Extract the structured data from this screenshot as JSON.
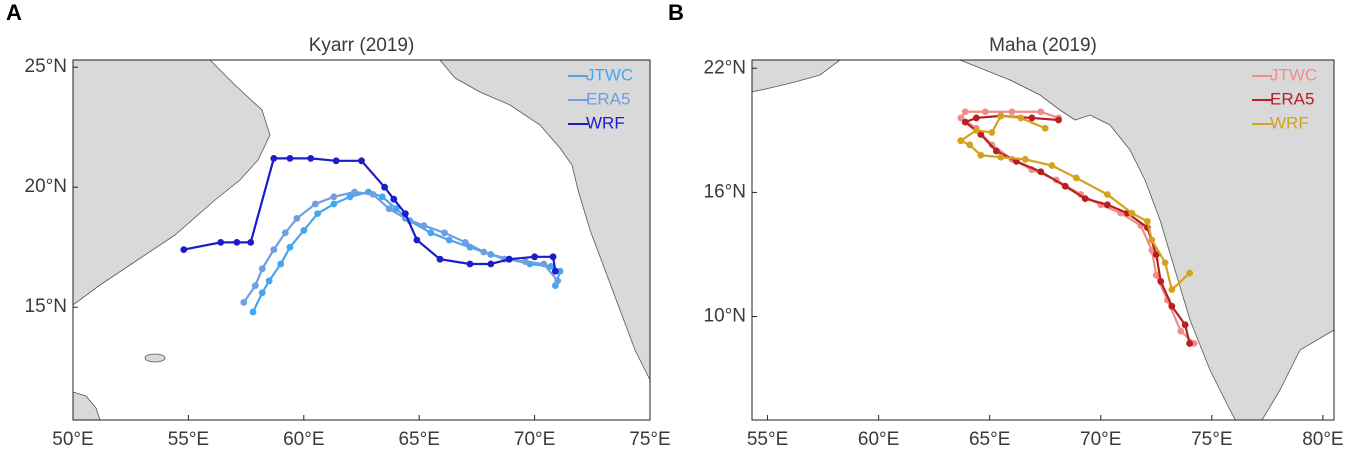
{
  "chart_data": [
    {
      "type": "line",
      "label": "A",
      "title": "Kyarr (2019)",
      "legend": "upper right",
      "xlim": [
        50,
        75
      ],
      "ylim": [
        10.3,
        25.3
      ],
      "xticks": [
        {
          "value": 50,
          "label": "50°E"
        },
        {
          "value": 55,
          "label": "55°E"
        },
        {
          "value": 60,
          "label": "60°E"
        },
        {
          "value": 65,
          "label": "65°E"
        },
        {
          "value": 70,
          "label": "70°E"
        },
        {
          "value": 75,
          "label": "75°E"
        }
      ],
      "yticks": [
        {
          "value": 15,
          "label": "15°N"
        },
        {
          "value": 20,
          "label": "20°N"
        },
        {
          "value": 25,
          "label": "25°N"
        }
      ],
      "series": [
        {
          "name": "JTWC",
          "color": "#45a6f0",
          "x": [
            57.8,
            58.2,
            58.5,
            59.0,
            59.4,
            60.0,
            60.6,
            61.3,
            62.0,
            62.8,
            63.4,
            64.0,
            64.6,
            65.5,
            66.3,
            67.2,
            68.1,
            68.9,
            69.8,
            70.7,
            71.1,
            70.9
          ],
          "values": [
            14.8,
            15.6,
            16.1,
            16.8,
            17.5,
            18.2,
            18.9,
            19.3,
            19.6,
            19.8,
            19.6,
            19.1,
            18.6,
            18.1,
            17.8,
            17.5,
            17.2,
            17.0,
            16.8,
            16.7,
            16.5,
            15.9
          ]
        },
        {
          "name": "ERA5",
          "color": "#6f9fe0",
          "x": [
            57.4,
            57.9,
            58.2,
            58.7,
            59.2,
            59.7,
            60.5,
            61.3,
            62.2,
            63.0,
            63.7,
            64.4,
            65.2,
            66.1,
            67.0,
            67.8,
            68.7,
            69.6,
            70.4,
            71.0
          ],
          "values": [
            15.2,
            15.9,
            16.6,
            17.4,
            18.1,
            18.7,
            19.3,
            19.6,
            19.8,
            19.7,
            19.1,
            18.7,
            18.4,
            18.1,
            17.7,
            17.3,
            17.0,
            16.9,
            16.8,
            16.1
          ]
        },
        {
          "name": "WRF",
          "color": "#1c1cc8",
          "x": [
            54.8,
            56.4,
            57.1,
            57.7,
            58.7,
            59.4,
            60.3,
            61.4,
            62.5,
            63.5,
            63.9,
            64.4,
            64.9,
            65.9,
            67.2,
            68.1,
            68.9,
            70.0,
            70.8,
            70.9
          ],
          "values": [
            17.4,
            17.7,
            17.7,
            17.7,
            21.2,
            21.2,
            21.2,
            21.1,
            21.1,
            20.0,
            19.5,
            18.9,
            17.8,
            17.0,
            16.8,
            16.8,
            17.0,
            17.1,
            17.1,
            16.5
          ]
        }
      ]
    },
    {
      "type": "line",
      "label": "B",
      "title": "Maha (2019)",
      "legend": "upper right",
      "xlim": [
        54.3,
        80.5
      ],
      "ylim": [
        5,
        22.4
      ],
      "xticks": [
        {
          "value": 55,
          "label": "55°E"
        },
        {
          "value": 60,
          "label": "60°E"
        },
        {
          "value": 65,
          "label": "65°E"
        },
        {
          "value": 70,
          "label": "70°E"
        },
        {
          "value": 75,
          "label": "75°E"
        },
        {
          "value": 80,
          "label": "80°E"
        }
      ],
      "yticks": [
        {
          "value": 10,
          "label": "10°N"
        },
        {
          "value": 16,
          "label": "16°N"
        },
        {
          "value": 22,
          "label": "22°N"
        }
      ],
      "series": [
        {
          "name": "JTWC",
          "color": "#f28b8b",
          "x": [
            74.2,
            73.6,
            73.0,
            72.5,
            72.3,
            71.8,
            70.9,
            70.0,
            69.1,
            68.0,
            66.9,
            66.0,
            65.1,
            64.4,
            63.7,
            63.9,
            64.8,
            66.0,
            67.3,
            68.1
          ],
          "values": [
            8.7,
            9.3,
            10.8,
            12.0,
            13.2,
            14.4,
            15.0,
            15.4,
            15.9,
            16.6,
            17.1,
            17.6,
            18.3,
            19.1,
            19.6,
            19.9,
            19.9,
            19.9,
            19.9,
            19.6
          ]
        },
        {
          "name": "ERA5",
          "color": "#b82020",
          "x": [
            74.0,
            73.8,
            73.2,
            72.7,
            72.5,
            72.1,
            71.2,
            70.3,
            69.3,
            68.4,
            67.3,
            66.2,
            65.3,
            64.6,
            63.9,
            64.4,
            65.5,
            66.9,
            68.1
          ],
          "values": [
            8.7,
            9.6,
            10.5,
            11.7,
            13.0,
            14.3,
            15.0,
            15.4,
            15.7,
            16.3,
            17.0,
            17.5,
            18.0,
            18.8,
            19.4,
            19.6,
            19.7,
            19.6,
            19.5
          ]
        },
        {
          "name": "WRF",
          "color": "#d4a21c",
          "x": [
            74.0,
            73.2,
            72.9,
            72.3,
            72.1,
            71.4,
            70.3,
            68.9,
            67.8,
            66.6,
            65.5,
            64.6,
            64.1,
            63.7,
            64.4,
            65.1,
            65.5,
            66.4,
            67.5
          ],
          "values": [
            12.1,
            11.3,
            12.6,
            13.7,
            14.6,
            15.0,
            15.9,
            16.7,
            17.3,
            17.6,
            17.7,
            17.8,
            18.3,
            18.5,
            19.0,
            18.9,
            19.7,
            19.6,
            19.1
          ]
        }
      ]
    }
  ]
}
